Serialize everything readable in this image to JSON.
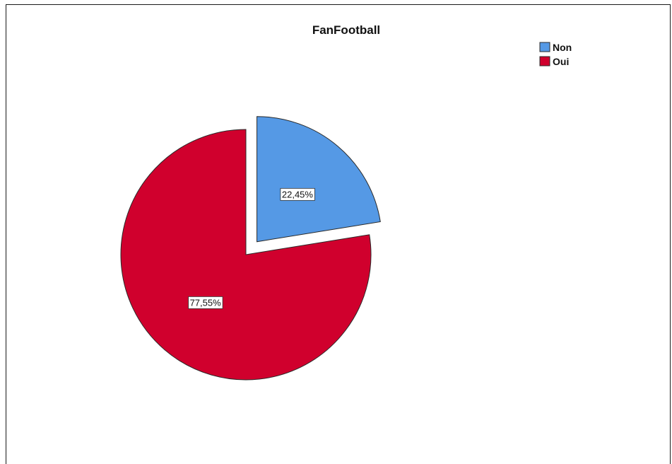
{
  "chart_data": {
    "type": "pie",
    "title": "FanFootball",
    "slices": [
      {
        "name": "Non",
        "value": 22.45,
        "label": "22,45%",
        "color": "#5599e5",
        "exploded": true
      },
      {
        "name": "Oui",
        "value": 77.55,
        "label": "77,55%",
        "color": "#d0002d",
        "exploded": false
      }
    ],
    "legend": {
      "placement": "top-right",
      "entries": [
        "Non",
        "Oui"
      ]
    },
    "start_angle_deg": 0,
    "direction": "clockwise"
  }
}
